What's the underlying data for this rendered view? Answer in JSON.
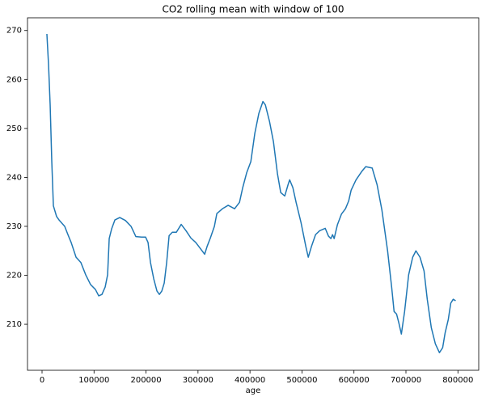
{
  "chart_data": {
    "type": "line",
    "title": "CO2 rolling mean with window of 100",
    "x_label": "age",
    "x": [
      9300,
      12500,
      15600,
      18700,
      21800,
      28000,
      32700,
      43600,
      49800,
      56000,
      65400,
      74700,
      84000,
      93400,
      102700,
      109000,
      115200,
      121400,
      126100,
      129200,
      133900,
      140100,
      149500,
      160300,
      171200,
      180500,
      191400,
      199200,
      203900,
      208600,
      214800,
      221000,
      225700,
      230400,
      235000,
      239700,
      244400,
      250600,
      258400,
      267700,
      277000,
      286400,
      295700,
      305000,
      312800,
      317500,
      323700,
      331500,
      336200,
      347100,
      358000,
      370400,
      379800,
      386000,
      393800,
      401600,
      409300,
      417100,
      424900,
      429600,
      437400,
      445100,
      452900,
      459100,
      466900,
      473200,
      476300,
      482500,
      488700,
      498100,
      507400,
      512100,
      518300,
      526100,
      533900,
      544700,
      551000,
      555700,
      558800,
      561900,
      568100,
      575900,
      583700,
      589900,
      594600,
      604000,
      614900,
      622700,
      635100,
      644500,
      653800,
      664700,
      672500,
      677200,
      681900,
      686500,
      691200,
      697400,
      705200,
      713000,
      719200,
      727000,
      734800,
      741000,
      748800,
      756600,
      764400,
      770600,
      775300,
      781500,
      786200,
      790900,
      795600
    ],
    "series": [
      {
        "color": "#1f77b4",
        "values": [
          269.3,
          263,
          254.8,
          243.3,
          234.2,
          232.0,
          231.3,
          230.0,
          228.3,
          226.7,
          223.7,
          222.6,
          220.1,
          218.1,
          217.1,
          215.8,
          216.1,
          217.6,
          220.1,
          227.5,
          229.5,
          231.3,
          231.8,
          231.2,
          230.0,
          227.9,
          227.8,
          227.8,
          226.7,
          222.6,
          219.3,
          216.8,
          216.1,
          216.8,
          218.4,
          222.6,
          228.1,
          228.8,
          228.8,
          230.4,
          229.1,
          227.6,
          226.7,
          225.4,
          224.3,
          225.9,
          227.6,
          230.0,
          232.6,
          233.6,
          234.3,
          233.6,
          234.9,
          237.9,
          241.0,
          243.2,
          249.0,
          253.1,
          255.5,
          254.8,
          251.5,
          247.3,
          240.7,
          236.9,
          236.2,
          238.5,
          239.5,
          237.9,
          234.9,
          230.8,
          225.9,
          223.7,
          225.9,
          228.3,
          229.1,
          229.6,
          228.0,
          227.5,
          228.3,
          227.5,
          230.3,
          232.5,
          233.6,
          235.2,
          237.4,
          239.5,
          241.2,
          242.2,
          241.9,
          238.5,
          233.3,
          225.0,
          217.6,
          212.6,
          212.1,
          210.2,
          208.0,
          212.6,
          220.1,
          223.7,
          225.0,
          223.7,
          220.9,
          215.1,
          209.3,
          206.0,
          204.2,
          205.2,
          208.2,
          211.0,
          214.3,
          215.1,
          214.8
        ]
      }
    ],
    "xlim": [
      -28000,
      840000
    ],
    "ylim": [
      200.6,
      272.6
    ],
    "xticks": [
      0,
      100000,
      200000,
      300000,
      400000,
      500000,
      600000,
      700000,
      800000
    ],
    "yticks": [
      210,
      220,
      230,
      240,
      250,
      260,
      270
    ],
    "grid": false
  }
}
